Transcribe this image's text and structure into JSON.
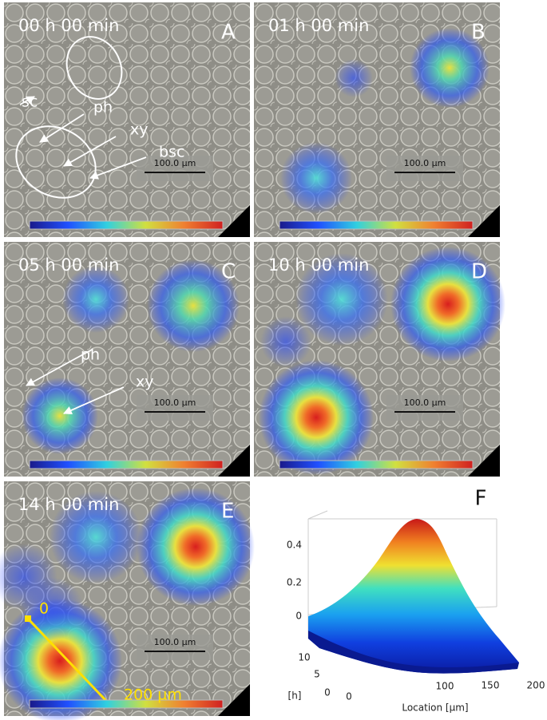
{
  "panels": [
    {
      "letter": "A",
      "time": "00 h 00 min",
      "scale_bar": "100.0 µm",
      "annotations": [
        "sc",
        "ph",
        "xy",
        "bsc"
      ]
    },
    {
      "letter": "B",
      "time": "01 h 00 min",
      "scale_bar": "100.0 µm"
    },
    {
      "letter": "C",
      "time": "05 h 00 min",
      "scale_bar": "100.0 µm",
      "annotations": [
        "ph",
        "xy"
      ]
    },
    {
      "letter": "D",
      "time": "10 h 00 min",
      "scale_bar": "100.0 µm"
    },
    {
      "letter": "E",
      "time": "14 h 00 min",
      "scale_bar": "100.0 µm",
      "annotations": [
        "0",
        "200 µm"
      ]
    }
  ],
  "plot": {
    "letter": "F",
    "z_ticks": [
      0,
      0.2,
      0.4
    ],
    "y_label": "[h]",
    "y_ticks": [
      0,
      5,
      10
    ],
    "x_label": "Location [µm]",
    "x_ticks": [
      0,
      100,
      150,
      200
    ]
  }
}
